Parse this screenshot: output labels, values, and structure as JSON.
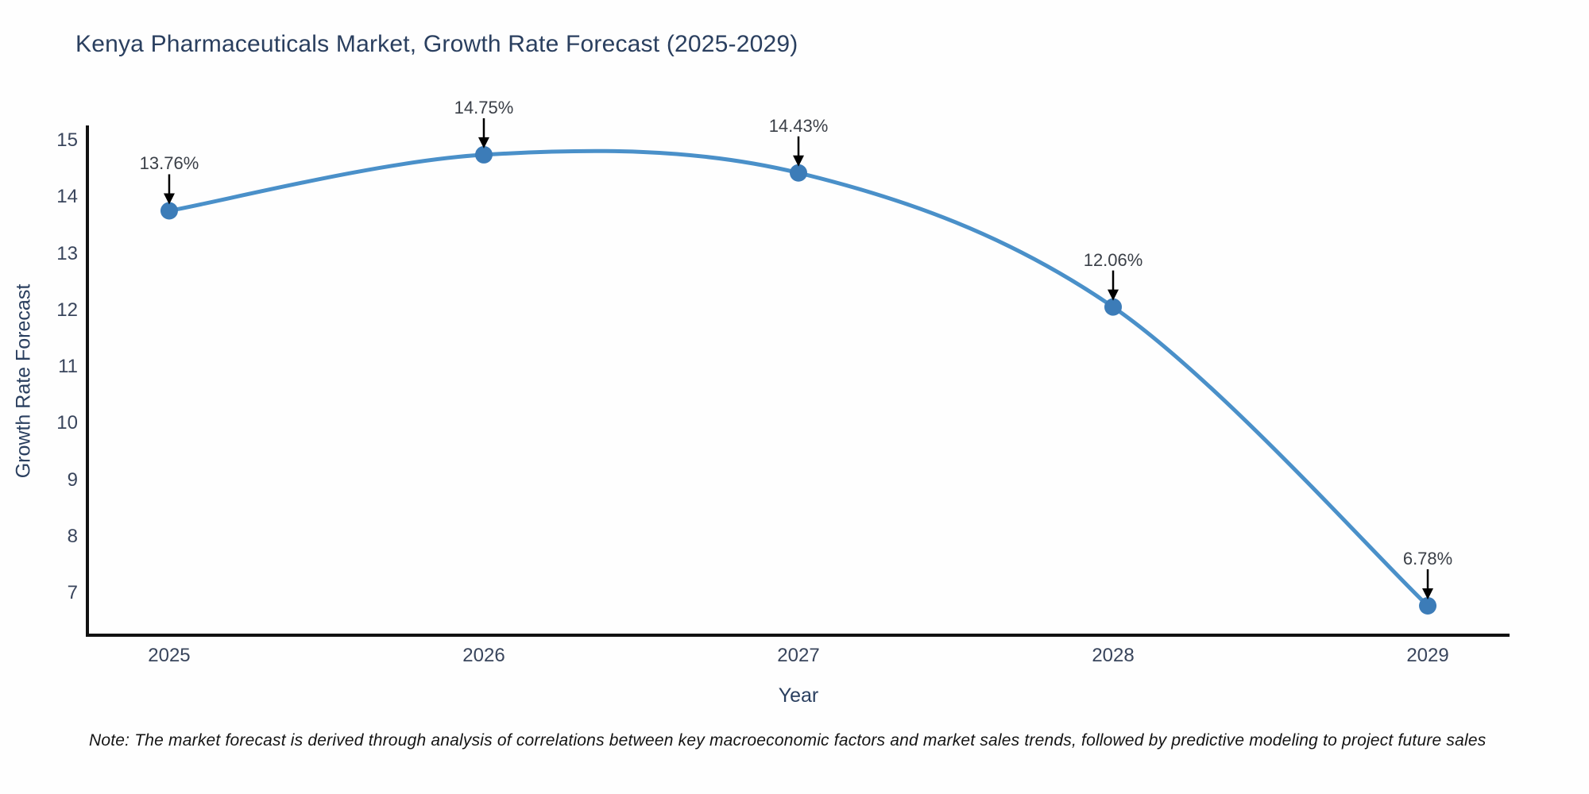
{
  "chart_data": {
    "type": "line",
    "title": "Kenya Pharmaceuticals Market, Growth Rate Forecast (2025-2029)",
    "xlabel": "Year",
    "ylabel": "Growth Rate Forecast",
    "x": [
      2025,
      2026,
      2027,
      2028,
      2029
    ],
    "series": [
      {
        "name": "Growth Rate Forecast",
        "values": [
          13.76,
          14.75,
          14.43,
          12.06,
          6.78
        ],
        "point_labels": [
          "13.76%",
          "14.75%",
          "14.43%",
          "12.06%",
          "6.78%"
        ]
      }
    ],
    "xticks": [
      "2025",
      "2026",
      "2027",
      "2028",
      "2029"
    ],
    "yticks": [
      7,
      8,
      9,
      10,
      11,
      12,
      13,
      14,
      15
    ],
    "xlim": [
      2024.74,
      2029.26
    ],
    "ylim": [
      6.26,
      15.24
    ],
    "grid": false,
    "legend": "none",
    "line_smooth": true,
    "colors": {
      "line": "#4a90c9",
      "marker": "#3c7cb8",
      "arrow": "#000000",
      "axis": "#111111",
      "title_text": "#2a3f5f",
      "tick_text": "#39455c",
      "annotation_text": "#3a3f47"
    }
  },
  "note": "Note: The market forecast is derived through analysis of correlations between key macroeconomic factors and market sales trends, followed by predictive modeling to project future sales"
}
